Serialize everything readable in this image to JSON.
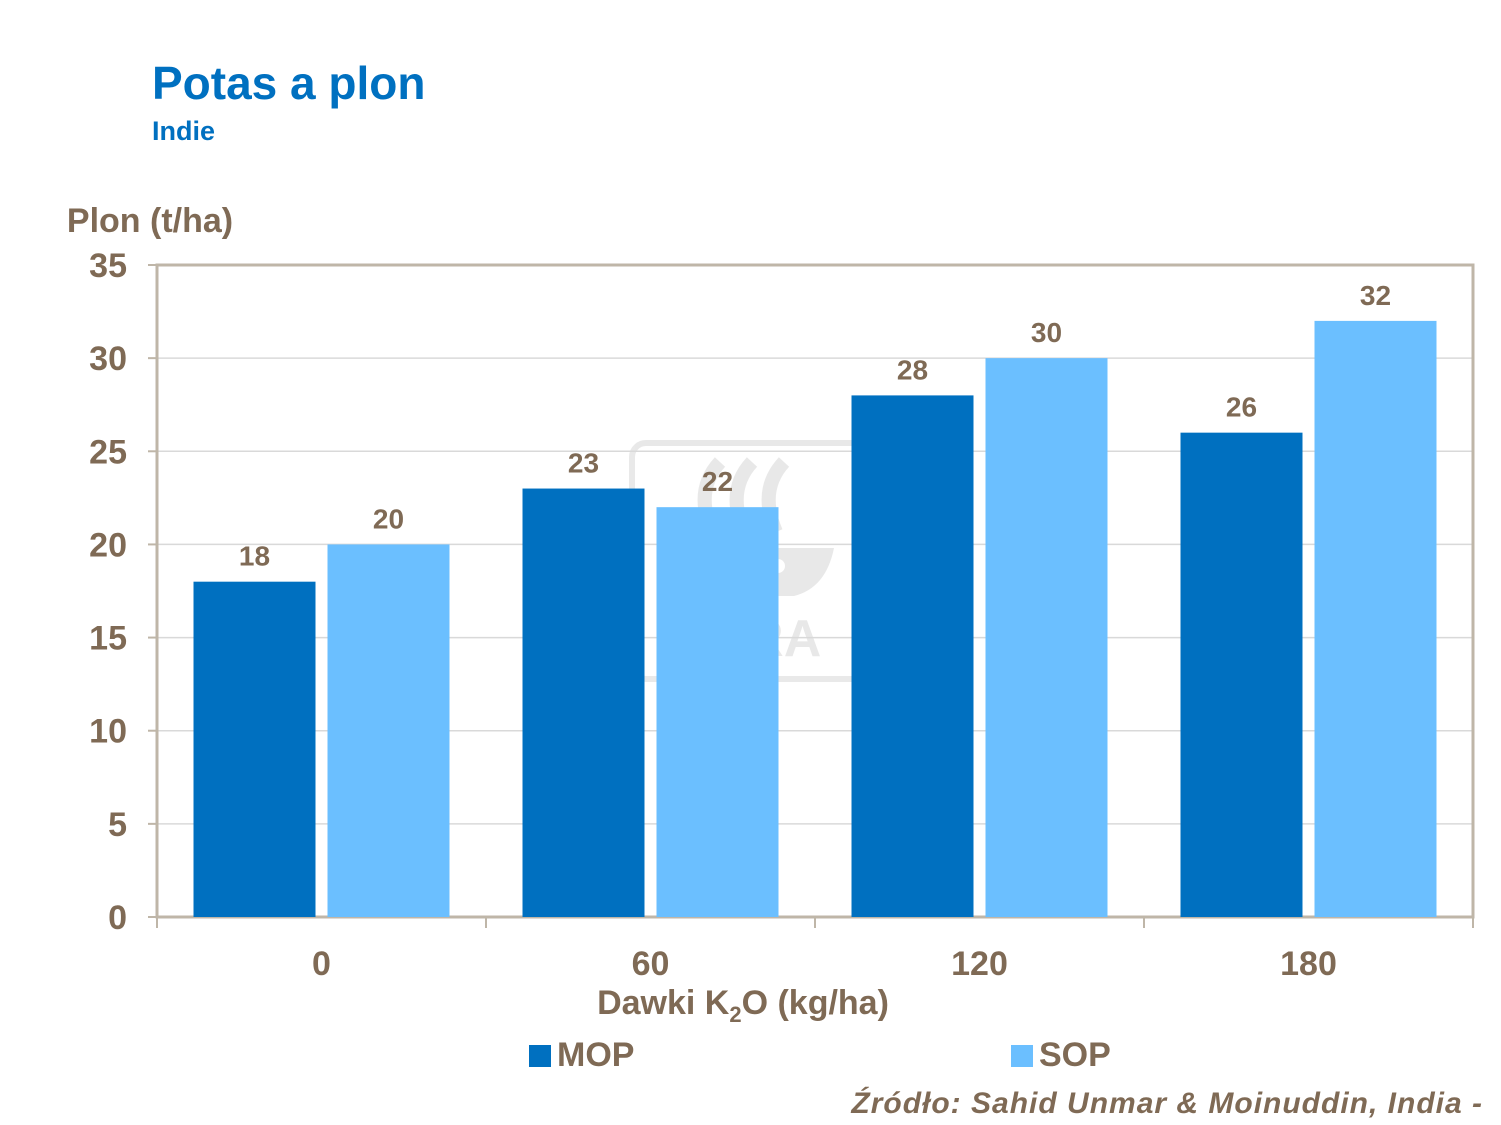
{
  "title": "Potas a plon",
  "subtitle": "Indie",
  "source": "Źródło: Sahid Unmar & Moinuddin, India -",
  "watermark": "YARA",
  "colors": {
    "text": "#7F6A55",
    "title": "#0070C0",
    "mop": "#0070C0",
    "sop": "#6BBFFF",
    "grid": "#D9D9D9",
    "frame": "#BFB6A8"
  },
  "chart_data": {
    "type": "bar",
    "ylabel": "Plon (t/ha)",
    "xlabel_parts": [
      "Dawki K",
      "2",
      "O (kg/ha)"
    ],
    "categories": [
      "0",
      "60",
      "120",
      "180"
    ],
    "series": [
      {
        "name": "MOP",
        "values": [
          18,
          23,
          28,
          26
        ]
      },
      {
        "name": "SOP",
        "values": [
          20,
          22,
          30,
          32
        ]
      }
    ],
    "ylim": [
      0,
      35
    ],
    "yticks": [
      0,
      5,
      10,
      15,
      20,
      25,
      30,
      35
    ],
    "grid": true,
    "legend_position": "bottom"
  }
}
